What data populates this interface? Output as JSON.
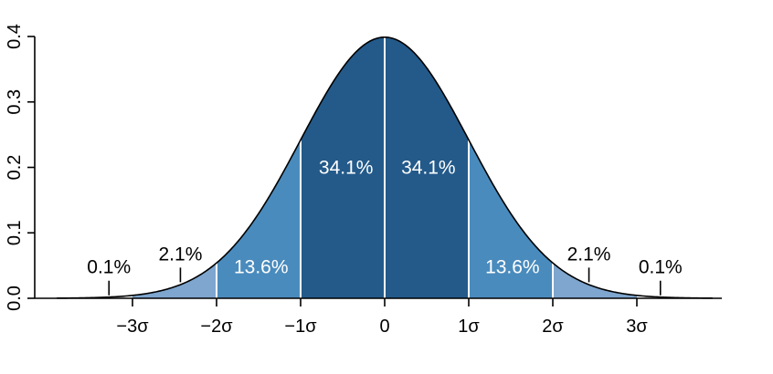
{
  "chart_data": {
    "type": "area",
    "title": "",
    "xlabel": "",
    "ylabel": "",
    "distribution": "standard normal",
    "xlim": [
      -3.9,
      3.9
    ],
    "ylim": [
      0,
      0.4
    ],
    "y_ticks": [
      {
        "value": 0.0,
        "label": "0.0"
      },
      {
        "value": 0.1,
        "label": "0.1"
      },
      {
        "value": 0.2,
        "label": "0.2"
      },
      {
        "value": 0.3,
        "label": "0.3"
      },
      {
        "value": 0.4,
        "label": "0.4"
      }
    ],
    "x_ticks": [
      {
        "value": -3,
        "label": "−3σ"
      },
      {
        "value": -2,
        "label": "−2σ"
      },
      {
        "value": -1,
        "label": "−1σ"
      },
      {
        "value": 0,
        "label": "0"
      },
      {
        "value": 1,
        "label": "1σ"
      },
      {
        "value": 2,
        "label": "2σ"
      },
      {
        "value": 3,
        "label": "3σ"
      }
    ],
    "bands": [
      {
        "from": -3,
        "to": -2,
        "color": "#7ea6cf"
      },
      {
        "from": -2,
        "to": -1,
        "color": "#4a8bbd"
      },
      {
        "from": -1,
        "to": 0,
        "color": "#235a8a"
      },
      {
        "from": 0,
        "to": 1,
        "color": "#235a8a"
      },
      {
        "from": 1,
        "to": 2,
        "color": "#4a8bbd"
      },
      {
        "from": 2,
        "to": 3,
        "color": "#7ea6cf"
      }
    ],
    "dividers": [
      -2,
      -1,
      0,
      1,
      2
    ],
    "annotations": [
      {
        "label": "34.1%",
        "x": -0.46,
        "y": 0.19,
        "style": "white"
      },
      {
        "label": "34.1%",
        "x": 0.52,
        "y": 0.19,
        "style": "white"
      },
      {
        "label": "13.6%",
        "x": -1.47,
        "y": 0.038,
        "style": "white"
      },
      {
        "label": "13.6%",
        "x": 1.52,
        "y": 0.038,
        "style": "white"
      },
      {
        "label": "2.1%",
        "x": -2.43,
        "y": 0.058,
        "style": "black",
        "pointer_x": -2.43
      },
      {
        "label": "2.1%",
        "x": 2.43,
        "y": 0.058,
        "style": "black",
        "pointer_x": 2.43
      },
      {
        "label": "0.1%",
        "x": -3.28,
        "y": 0.038,
        "style": "black",
        "pointer_x": -3.28
      },
      {
        "label": "0.1%",
        "x": 3.28,
        "y": 0.038,
        "style": "black",
        "pointer_x": 3.28
      }
    ],
    "colors": {
      "curve": "#000000",
      "divider": "#ffffff",
      "axis": "#000000"
    }
  }
}
